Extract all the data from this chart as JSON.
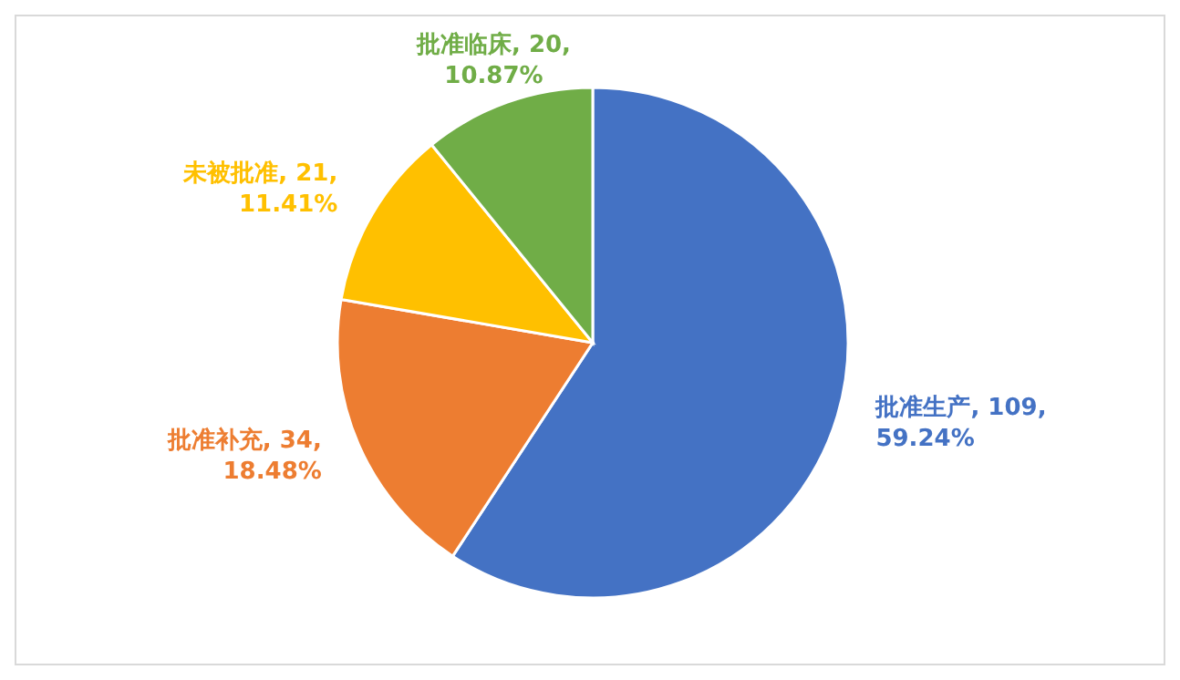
{
  "chart_data": {
    "type": "pie",
    "categories": [
      "批准生产",
      "批准补充",
      "未被批准",
      "批准临床"
    ],
    "values": [
      109,
      34,
      21,
      20
    ],
    "colors": [
      "#4472c4",
      "#ed7d31",
      "#ffc000",
      "#70ad47"
    ],
    "value_labels": [
      "109, 59.24%",
      "34, 18.48%",
      "21, 11.41%",
      "20, 10.87%"
    ]
  }
}
